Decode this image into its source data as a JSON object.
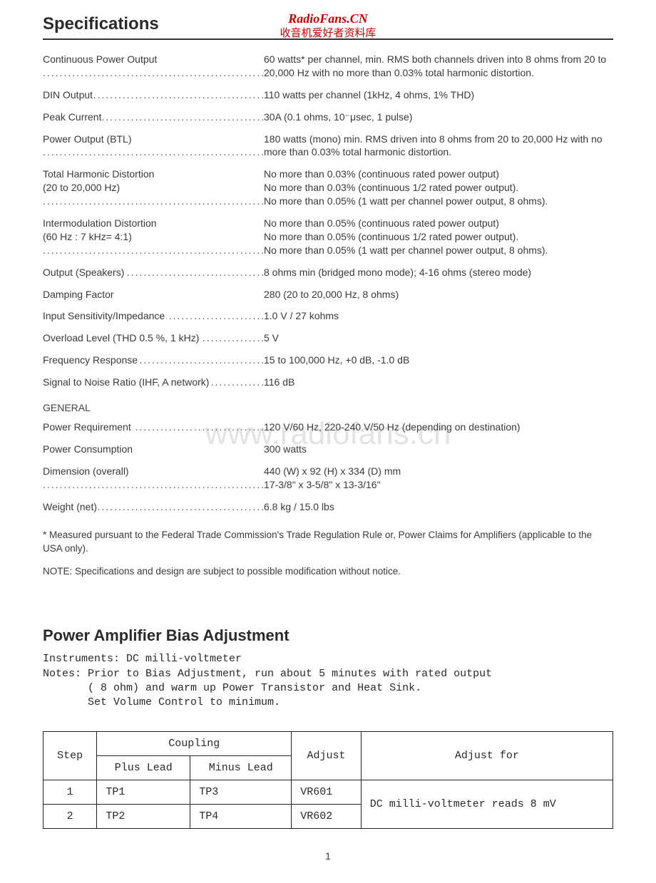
{
  "watermark": {
    "line1": "RadioFans.CN",
    "line2": "收音机爱好者资料库",
    "big": "www.radiofans.cn"
  },
  "title": "Specifications",
  "specs": [
    {
      "label": "Continuous Power Output",
      "dotted": true,
      "value": "60 watts* per channel, min. RMS both channels driven into 8 ohms from 20 to 20,000 Hz with no more than 0.03% total harmonic distortion."
    },
    {
      "label": "DIN Output",
      "dotted": true,
      "value": "110 watts per channel (1kHz, 4 ohms, 1% THD)"
    },
    {
      "label": "Peak Current",
      "dotted": true,
      "value": "30A (0.1 ohms, 10⁻μsec, 1 pulse)"
    },
    {
      "label": "Power Output (BTL)",
      "dotted": true,
      "value": "180 watts (mono) min. RMS driven into 8 ohms from 20 to 20,000 Hz with no more than 0.03% total harmonic distortion."
    },
    {
      "label": "Total Harmonic Distortion",
      "sub": "(20 to 20,000 Hz)",
      "dotted": true,
      "value": "No more than 0.03% (continuous rated power output)\nNo more than 0.03% (continuous 1/2 rated power output).\nNo more than 0.05% (1 watt per channel power output, 8 ohms)."
    },
    {
      "label": "Intermodulation Distortion",
      "sub": "(60 Hz : 7 kHz= 4:1)",
      "dotted": true,
      "value": "No more than 0.05% (continuous rated power output)\nNo more than 0.05% (continuous 1/2 rated power output).\nNo more than 0.05% (1 watt per channel power output, 8 ohms)."
    },
    {
      "label": "Output (Speakers)",
      "dotted": true,
      "value": "8 ohms min (bridged mono mode); 4-16 ohms (stereo mode)"
    },
    {
      "label": "Damping Factor",
      "dotted": false,
      "value": "280 (20 to 20,000 Hz, 8 ohms)"
    },
    {
      "label": "Input Sensitivity/Impedance",
      "dotted": true,
      "value": "1.0 V / 27 kohms"
    },
    {
      "label": "Overload Level (THD 0.5 %, 1 kHz)",
      "dotted": true,
      "value": "5 V"
    },
    {
      "label": "Frequency Response",
      "dotted": true,
      "value": "15 to 100,000 Hz, +0 dB, -1.0 dB"
    },
    {
      "label": "Signal to Noise Ratio (IHF, A network)",
      "dotted": true,
      "value": "116 dB"
    }
  ],
  "general_heading": "GENERAL",
  "general": [
    {
      "label": "Power Requirement",
      "dotted": true,
      "value": "120 V/60 Hz, 220-240 V/50 Hz (depending on destination)"
    },
    {
      "label": "Power Consumption",
      "dotted": false,
      "value": "300 watts"
    },
    {
      "label": "Dimension (overall)",
      "dotted": true,
      "value": "440 (W) x 92 (H) x 334 (D) mm\n17-3/8\"  x  3-5/8\"  x  13-3/16\""
    },
    {
      "label": "Weight (net)",
      "dotted": true,
      "value": "6.8 kg / 15.0 lbs"
    }
  ],
  "footnote": "* Measured pursuant to the Federal Trade Commission's Trade Regulation Rule or, Power Claims for Amplifiers (applicable to the USA only).",
  "note": "NOTE: Specifications and design are subject to possible modification without notice.",
  "section2": {
    "title": "Power Amplifier Bias Adjustment",
    "mono": "Instruments: DC milli-voltmeter\nNotes: Prior to Bias Adjustment, run about 5 minutes with rated output\n       ( 8 ohm) and warm up Power Transistor and Heat Sink.\n       Set Volume Control to minimum."
  },
  "table": {
    "headers": {
      "step": "Step",
      "coupling": "Coupling",
      "plus": "Plus Lead",
      "minus": "Minus Lead",
      "adjust": "Adjust",
      "adjustfor": "Adjust for"
    },
    "rows": [
      {
        "step": "1",
        "plus": "TP1",
        "minus": "TP3",
        "adjust": "VR601"
      },
      {
        "step": "2",
        "plus": "TP2",
        "minus": "TP4",
        "adjust": "VR602"
      }
    ],
    "adjustfor": "DC milli-voltmeter reads 8 mV"
  },
  "page": "1"
}
